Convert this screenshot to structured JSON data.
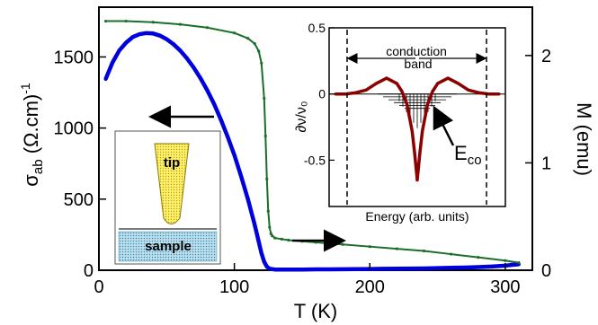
{
  "chart_data": [
    {
      "type": "line",
      "xlabel": "T (K)",
      "ylabel_left": {
        "main": "σ",
        "sub": "ab",
        "rest": " (Ω.cm)",
        "sup": "-1"
      },
      "ylabel_right": "M (emu)",
      "xlim": [
        0,
        320
      ],
      "ylim_left": [
        0,
        1850
      ],
      "ylim_right": [
        0,
        2.45
      ],
      "x_ticks": [
        0,
        100,
        200,
        300
      ],
      "y_left_ticks": [
        0,
        500,
        1000,
        1500
      ],
      "y_right_ticks": [
        0,
        1,
        2
      ],
      "series": [
        {
          "axis": "left",
          "color": "#0000dd",
          "x": [
            5,
            10,
            15,
            20,
            25,
            30,
            35,
            40,
            45,
            50,
            55,
            60,
            65,
            70,
            75,
            80,
            85,
            90,
            95,
            100,
            105,
            110,
            115,
            118,
            120,
            122,
            124,
            126,
            128,
            130,
            140,
            150,
            160,
            170,
            180,
            190,
            200,
            210,
            220,
            230,
            240,
            250,
            260,
            270,
            280,
            290,
            300,
            305,
            310
          ],
          "y": [
            1345,
            1460,
            1545,
            1600,
            1640,
            1660,
            1668,
            1665,
            1650,
            1625,
            1590,
            1545,
            1490,
            1425,
            1350,
            1265,
            1170,
            1060,
            940,
            810,
            660,
            500,
            320,
            200,
            120,
            60,
            25,
            10,
            8,
            5,
            5,
            5,
            6,
            6,
            7,
            8,
            9,
            10,
            11,
            12,
            13,
            15,
            17,
            19,
            22,
            26,
            32,
            38,
            42
          ]
        },
        {
          "axis": "right",
          "color": "#1a6e2a",
          "x": [
            5,
            20,
            40,
            60,
            80,
            100,
            110,
            115,
            118,
            120,
            122,
            123,
            124,
            125,
            126,
            127,
            128,
            130,
            135,
            140,
            150,
            160,
            170,
            180,
            200,
            220,
            240,
            260,
            280,
            300,
            310
          ],
          "y": [
            2.32,
            2.32,
            2.31,
            2.29,
            2.26,
            2.21,
            2.16,
            2.11,
            2.04,
            1.93,
            1.6,
            1.25,
            0.85,
            0.55,
            0.4,
            0.34,
            0.32,
            0.3,
            0.29,
            0.28,
            0.27,
            0.26,
            0.25,
            0.24,
            0.22,
            0.2,
            0.18,
            0.15,
            0.12,
            0.09,
            0.07
          ]
        }
      ]
    },
    {
      "type": "line",
      "ylabel": "∂ν/ν₀",
      "xlabel": "Energy (arb. units)",
      "ylim": [
        -0.85,
        0.5
      ],
      "y_ticks": [
        -0.5,
        0,
        0.5
      ],
      "curve_color": "#8b0000",
      "series": [
        {
          "name": "",
          "x": [
            -1.6,
            -1.4,
            -1.2,
            -1.0,
            -0.8,
            -0.6,
            -0.4,
            -0.3,
            -0.2,
            -0.1,
            -0.05,
            0,
            0.05,
            0.1,
            0.2,
            0.3,
            0.4,
            0.6,
            0.8,
            1.0,
            1.2,
            1.4,
            1.6
          ],
          "y": [
            0.0,
            0.0,
            0.01,
            0.03,
            0.08,
            0.12,
            0.08,
            0.02,
            -0.08,
            -0.28,
            -0.45,
            -0.65,
            -0.45,
            -0.28,
            -0.08,
            0.02,
            0.08,
            0.12,
            0.08,
            0.03,
            0.01,
            0.0,
            0.0
          ]
        }
      ],
      "annotations": {
        "band_label": "conduction\nband",
        "eco_main": "E",
        "eco_sub": "co"
      }
    }
  ],
  "legend_inset": {
    "tip_label": "tip",
    "sample_label": "sample"
  }
}
